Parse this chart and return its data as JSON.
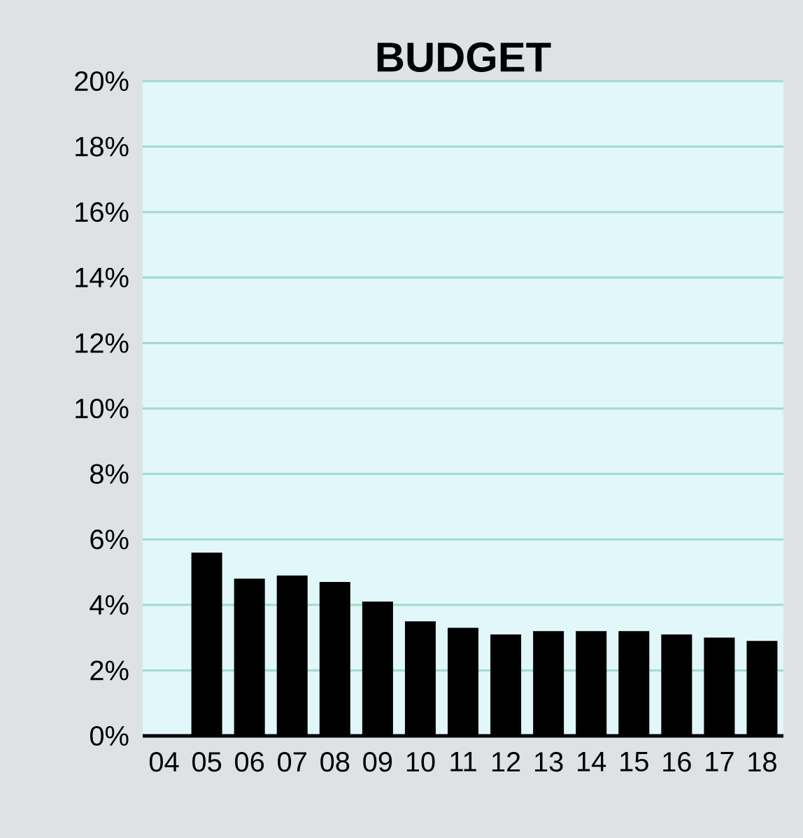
{
  "chart_data": {
    "type": "bar",
    "title": "BUDGET",
    "categories": [
      "04",
      "05",
      "06",
      "07",
      "08",
      "09",
      "10",
      "11",
      "12",
      "13",
      "14",
      "15",
      "16",
      "17",
      "18"
    ],
    "values": [
      null,
      5.6,
      4.8,
      4.9,
      4.7,
      4.1,
      3.5,
      3.3,
      3.1,
      3.2,
      3.2,
      3.2,
      3.1,
      3.0,
      2.9
    ],
    "color": "#000000",
    "ylim": [
      0,
      20
    ],
    "yticks": [
      {
        "value": 0,
        "label": "0%"
      },
      {
        "value": 2,
        "label": "2%"
      },
      {
        "value": 4,
        "label": "4%"
      },
      {
        "value": 6,
        "label": "6%"
      },
      {
        "value": 8,
        "label": "8%"
      },
      {
        "value": 10,
        "label": "10%"
      },
      {
        "value": 12,
        "label": "12%"
      },
      {
        "value": 14,
        "label": "14%"
      },
      {
        "value": 16,
        "label": "16%"
      },
      {
        "value": 18,
        "label": "18%"
      },
      {
        "value": 20,
        "label": "20%"
      }
    ],
    "grid": "y"
  }
}
